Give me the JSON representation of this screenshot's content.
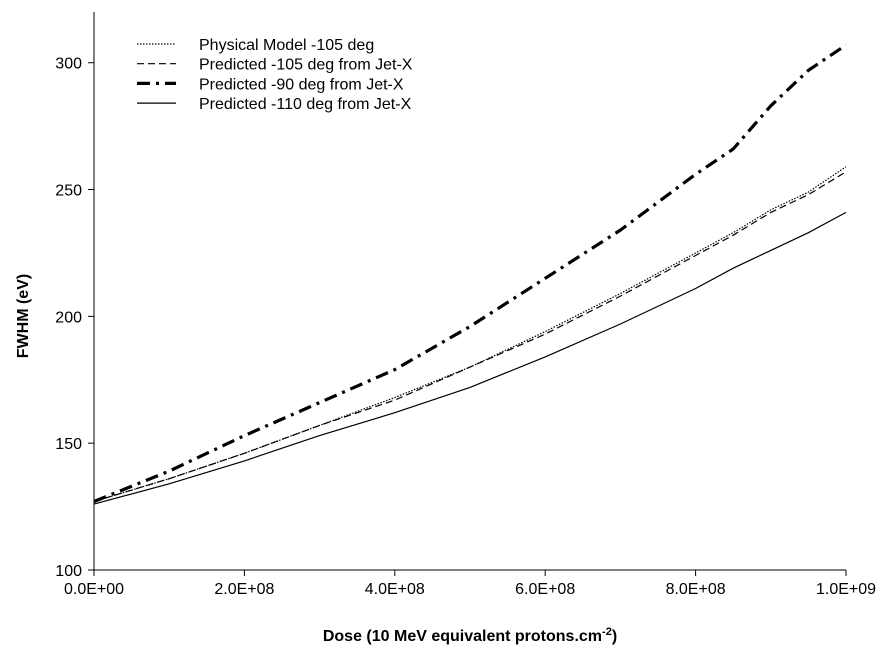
{
  "chart_data": {
    "type": "line",
    "title": "",
    "xlabel": "Dose (10 MeV equivalent protons.cm",
    "xlabel_sup": "-2",
    "xlabel_suffix": ")",
    "ylabel": "FWHM (eV)",
    "xlim": [
      0,
      1000000000
    ],
    "ylim": [
      100,
      320
    ],
    "x_ticks": [
      0,
      200000000,
      400000000,
      600000000,
      800000000,
      1000000000
    ],
    "x_tick_labels": [
      "0.0E+00",
      "2.0E+08",
      "4.0E+08",
      "6.0E+08",
      "8.0E+08",
      "1.0E+09"
    ],
    "y_ticks": [
      100,
      150,
      200,
      250,
      300
    ],
    "y_tick_labels": [
      "100",
      "150",
      "200",
      "250",
      "300"
    ],
    "grid": false,
    "legend_position": "top-left",
    "x": [
      0,
      100000000,
      200000000,
      300000000,
      400000000,
      500000000,
      600000000,
      700000000,
      800000000,
      850000000,
      900000000,
      950000000,
      1000000000
    ],
    "series": [
      {
        "name": "Physical Model -105 deg",
        "style": "dotted",
        "color": "#000000",
        "values": [
          127,
          136,
          146,
          157,
          168,
          180,
          194,
          209,
          225,
          233,
          242,
          249,
          259
        ]
      },
      {
        "name": "Predicted -105 deg from Jet-X",
        "style": "dashed",
        "color": "#000000",
        "values": [
          127,
          136,
          146,
          157,
          167,
          180,
          193,
          208,
          224,
          232,
          241,
          248,
          257
        ]
      },
      {
        "name": "Predicted -90 deg from Jet-X",
        "style": "dash-dot-thick",
        "color": "#000000",
        "values": [
          127,
          139,
          153,
          166,
          179,
          196,
          215,
          234,
          256,
          266,
          283,
          297,
          307
        ]
      },
      {
        "name": "Predicted -110 deg from Jet-X",
        "style": "solid",
        "color": "#000000",
        "values": [
          126,
          134,
          143,
          153,
          162,
          172,
          184,
          197,
          211,
          219,
          226,
          233,
          241
        ]
      }
    ]
  }
}
